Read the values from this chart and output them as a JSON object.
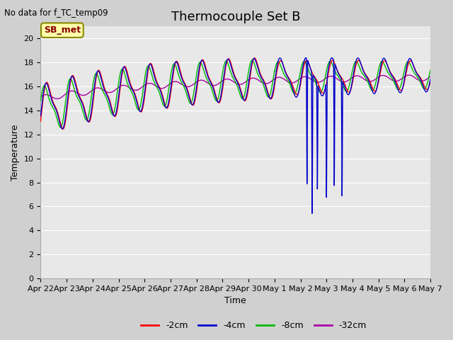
{
  "title": "Thermocouple Set B",
  "xlabel": "Time",
  "ylabel": "Temperature",
  "no_data_text": "No data for f_TC_temp09",
  "legend_label_text": "SB_met",
  "legend_entries": [
    "-2cm",
    "-4cm",
    "-8cm",
    "-32cm"
  ],
  "legend_colors": [
    "#ff0000",
    "#0000cc",
    "#00bb00",
    "#aa00aa"
  ],
  "ylim": [
    0,
    21
  ],
  "yticks": [
    0,
    2,
    4,
    6,
    8,
    10,
    12,
    14,
    16,
    18,
    20
  ],
  "fig_bg": "#d0d0d0",
  "plot_bg": "#e8e8e8",
  "grid_color": "#ffffff",
  "title_fontsize": 13,
  "axis_fontsize": 9,
  "tick_fontsize": 8
}
